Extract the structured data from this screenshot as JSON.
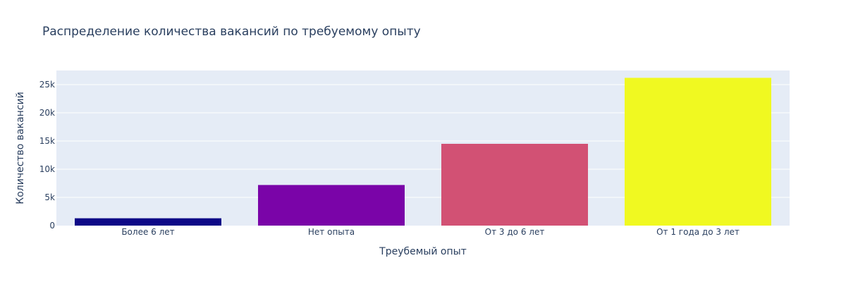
{
  "chart_data": {
    "type": "bar",
    "title": "Распределение количества вакансий по требуемому опыту",
    "xlabel": "Треубемый опыт",
    "ylabel": "Количество вакансий",
    "categories": [
      "Более 6 лет",
      "Нет опыта",
      "От 3 до 6 лет",
      "От 1 года до 3 лет"
    ],
    "values": [
      1300,
      7200,
      14500,
      26200
    ],
    "colors": [
      "#0d0887",
      "#7a04a8",
      "#d25174",
      "#f0f921"
    ],
    "ylim": [
      0,
      27500
    ],
    "yticks": [
      0,
      5000,
      10000,
      15000,
      20000,
      25000
    ],
    "ytick_labels": [
      "0",
      "5k",
      "10k",
      "15k",
      "20k",
      "25k"
    ],
    "plot_background": "#e5ecf6",
    "grid": true,
    "legend": "none"
  }
}
